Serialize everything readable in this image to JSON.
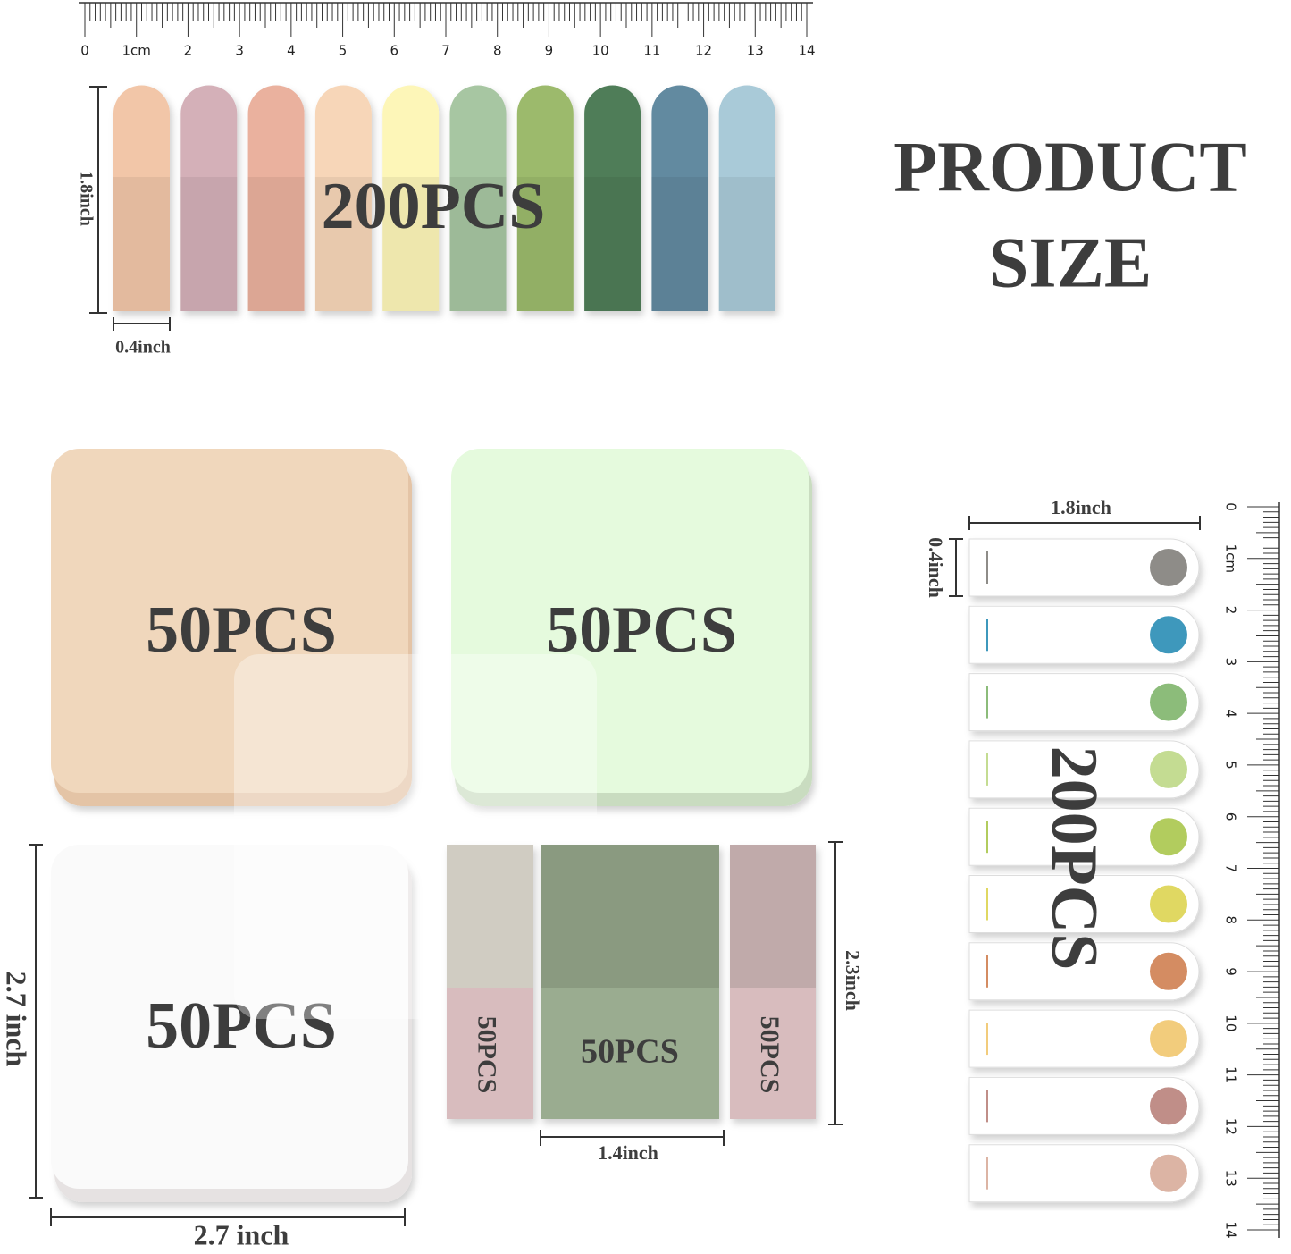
{
  "top_ruler": {
    "labels": [
      "0",
      "1cm",
      "2",
      "3",
      "4",
      "5",
      "6",
      "7",
      "8",
      "9",
      "10",
      "11",
      "12",
      "13",
      "14"
    ]
  },
  "strip_flags": {
    "count_label": "200PCS",
    "height_label": "1.8inch",
    "width_label": "0.4inch"
  },
  "heading": {
    "line1": "PRODUCT",
    "line2": "SIZE"
  },
  "square_notes": {
    "labels": [
      "50PCS",
      "50PCS",
      "50PCS"
    ],
    "height_label": "2.7 inch",
    "width_label": "2.7 inch"
  },
  "small_notes": {
    "labels": [
      "50PCS",
      "50PCS",
      "50PCS"
    ],
    "width_label": "1.4inch",
    "height_label": "2.3inch"
  },
  "arrow_flags": {
    "width_label": "1.8inch",
    "height_label": "0.4inch",
    "count_label": "200PCS"
  },
  "side_ruler": {
    "labels": [
      "0",
      "1cm",
      "2",
      "3",
      "4",
      "5",
      "6",
      "7",
      "8",
      "9",
      "10",
      "11",
      "12",
      "13",
      "14"
    ]
  }
}
